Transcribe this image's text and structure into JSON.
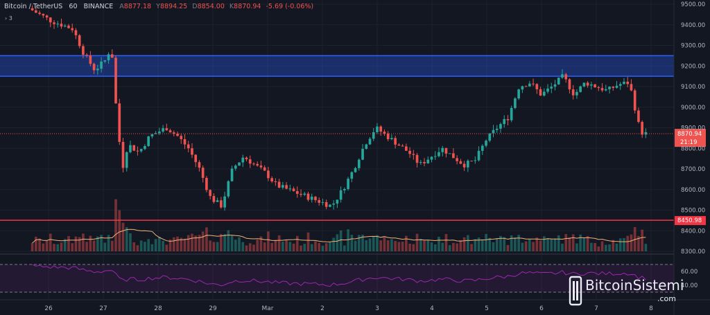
{
  "header": {
    "symbol": "Bitcoin / TetherUS",
    "interval": "60",
    "exchange": "BINANCE",
    "open_label": "A",
    "open": "8877.18",
    "high_label": "Y",
    "high": "8894.25",
    "low_label": "D",
    "low": "8854.00",
    "close_label": "K",
    "close": "8870.94",
    "change": "-5.69 (-0.06%)",
    "collapsed_indicators": "3"
  },
  "colors": {
    "background": "#131722",
    "up": "#26a69a",
    "down": "#ef5350",
    "zone": "#2962ff",
    "support": "#f23645",
    "volume_ma": "#f0b27a",
    "rsi": "#9c27b0"
  },
  "chart_data": {
    "type": "candlestick",
    "price_axis": {
      "ticks": [
        "9500.00",
        "9400.00",
        "9300.00",
        "9200.00",
        "9100.00",
        "9000.00",
        "8900.00",
        "8800.00",
        "8700.00",
        "8600.00",
        "8500.00",
        "8400.00",
        "8300.00"
      ],
      "range": [
        8300,
        9500
      ]
    },
    "time_axis": {
      "ticks": [
        "26",
        "27",
        "28",
        "29",
        "Mar",
        "2",
        "3",
        "4",
        "5",
        "6",
        "7",
        "8"
      ]
    },
    "last_price": {
      "value": "8870.94",
      "countdown": "21:19"
    },
    "resistance_zone": [
      9150,
      9250
    ],
    "support_line": {
      "value": 8450.98,
      "label": "8450.98"
    },
    "price_path": [
      [
        0,
        9480
      ],
      [
        4,
        9420
      ],
      [
        8,
        9380
      ],
      [
        10,
        9260
      ],
      [
        12,
        9180
      ],
      [
        14,
        9230
      ],
      [
        15,
        9300
      ],
      [
        16,
        8950
      ],
      [
        17,
        8700
      ],
      [
        18,
        8820
      ],
      [
        20,
        8780
      ],
      [
        22,
        8860
      ],
      [
        25,
        8900
      ],
      [
        27,
        8860
      ],
      [
        29,
        8800
      ],
      [
        31,
        8700
      ],
      [
        33,
        8560
      ],
      [
        35,
        8520
      ],
      [
        37,
        8700
      ],
      [
        39,
        8760
      ],
      [
        41,
        8720
      ],
      [
        43,
        8680
      ],
      [
        45,
        8620
      ],
      [
        47,
        8600
      ],
      [
        49,
        8580
      ],
      [
        51,
        8560
      ],
      [
        53,
        8540
      ],
      [
        55,
        8520
      ],
      [
        57,
        8600
      ],
      [
        59,
        8700
      ],
      [
        61,
        8820
      ],
      [
        63,
        8900
      ],
      [
        65,
        8860
      ],
      [
        67,
        8820
      ],
      [
        69,
        8780
      ],
      [
        71,
        8720
      ],
      [
        73,
        8760
      ],
      [
        75,
        8800
      ],
      [
        77,
        8760
      ],
      [
        79,
        8720
      ],
      [
        81,
        8740
      ],
      [
        83,
        8840
      ],
      [
        85,
        8900
      ],
      [
        87,
        8950
      ],
      [
        89,
        9100
      ],
      [
        91,
        9120
      ],
      [
        93,
        9060
      ],
      [
        95,
        9100
      ],
      [
        97,
        9150
      ],
      [
        99,
        9060
      ],
      [
        101,
        9120
      ],
      [
        103,
        9100
      ],
      [
        105,
        9080
      ],
      [
        107,
        9110
      ],
      [
        109,
        9120
      ],
      [
        110,
        9000
      ],
      [
        111,
        8880
      ],
      [
        112,
        8870.94
      ]
    ],
    "rsi_levels": [
      "60.00",
      "40.00"
    ]
  },
  "watermark": {
    "name": "BitcoinSistemi",
    "tld": ".com"
  }
}
